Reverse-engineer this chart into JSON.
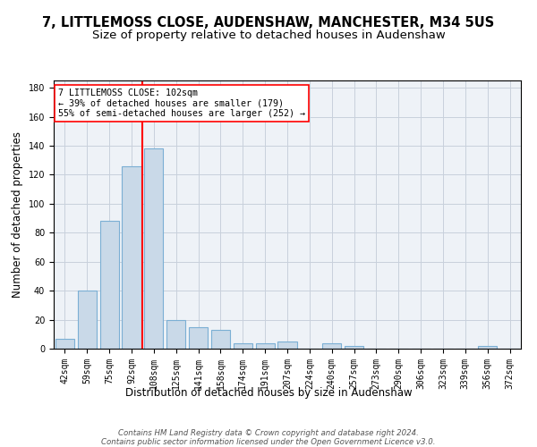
{
  "title_line1": "7, LITTLEMOSS CLOSE, AUDENSHAW, MANCHESTER, M34 5US",
  "title_line2": "Size of property relative to detached houses in Audenshaw",
  "xlabel": "Distribution of detached houses by size in Audenshaw",
  "ylabel": "Number of detached properties",
  "categories": [
    "42sqm",
    "59sqm",
    "75sqm",
    "92sqm",
    "108sqm",
    "125sqm",
    "141sqm",
    "158sqm",
    "174sqm",
    "191sqm",
    "207sqm",
    "224sqm",
    "240sqm",
    "257sqm",
    "273sqm",
    "290sqm",
    "306sqm",
    "323sqm",
    "339sqm",
    "356sqm",
    "372sqm"
  ],
  "values": [
    7,
    40,
    88,
    126,
    138,
    20,
    15,
    13,
    4,
    4,
    5,
    0,
    4,
    2,
    0,
    0,
    0,
    0,
    0,
    2,
    0
  ],
  "bar_color": "#c9d9e8",
  "bar_edge_color": "#7bafd4",
  "grid_color": "#c8d0dc",
  "background_color": "#eef2f7",
  "vline_x_index": 3,
  "vline_color": "red",
  "vline_linewidth": 1.5,
  "annotation_text": "7 LITTLEMOSS CLOSE: 102sqm\n← 39% of detached houses are smaller (179)\n55% of semi-detached houses are larger (252) →",
  "annotation_box_color": "white",
  "annotation_box_edge_color": "red",
  "ylim": [
    0,
    185
  ],
  "yticks": [
    0,
    20,
    40,
    60,
    80,
    100,
    120,
    140,
    160,
    180
  ],
  "footer_line1": "Contains HM Land Registry data © Crown copyright and database right 2024.",
  "footer_line2": "Contains public sector information licensed under the Open Government Licence v3.0.",
  "title_fontsize": 10.5,
  "subtitle_fontsize": 9.5,
  "tick_fontsize": 7,
  "ylabel_fontsize": 8.5,
  "xlabel_fontsize": 8.5,
  "footer_fontsize": 6.2
}
